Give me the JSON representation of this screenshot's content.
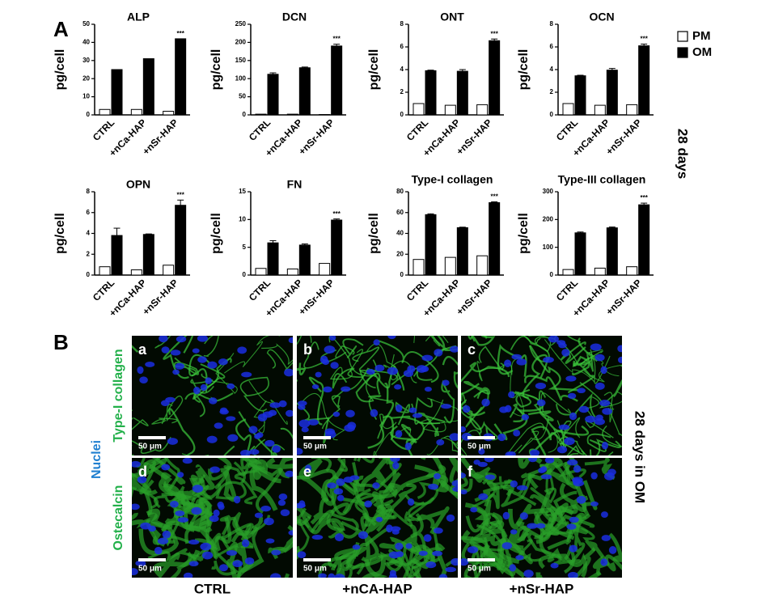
{
  "panel_a_label": "A",
  "side_label_a": "28 days",
  "chart_data": [
    {
      "type": "bar",
      "title": "ALP",
      "y_label": "pg/cell",
      "categories": [
        "CTRL",
        "+nCa-HAP",
        "+nSr-HAP"
      ],
      "series": [
        {
          "name": "PM",
          "color": "#ffffff",
          "values": [
            3,
            3,
            2
          ]
        },
        {
          "name": "OM",
          "color": "#000000",
          "values": [
            25,
            31,
            42
          ]
        }
      ],
      "annotation": "***",
      "ylim": [
        0,
        50
      ],
      "yticks": [
        0,
        10,
        20,
        30,
        40,
        50
      ]
    },
    {
      "type": "bar",
      "title": "DCN",
      "y_label": "pg/cell",
      "categories": [
        "CTRL",
        "+nCa-HAP",
        "+nSr-HAP"
      ],
      "series": [
        {
          "name": "PM",
          "color": "#ffffff",
          "values": [
            2,
            2,
            1
          ]
        },
        {
          "name": "OM",
          "color": "#000000",
          "values": [
            112,
            130,
            190
          ],
          "errors": [
            4,
            2,
            5
          ]
        }
      ],
      "annotation": "***",
      "ylim": [
        0,
        250
      ],
      "yticks": [
        0,
        50,
        100,
        150,
        200,
        250
      ]
    },
    {
      "type": "bar",
      "title": "ONT",
      "y_label": "pg/cell",
      "categories": [
        "CTRL",
        "+nCa-HAP",
        "+nSr-HAP"
      ],
      "series": [
        {
          "name": "PM",
          "color": "#ffffff",
          "values": [
            1,
            0.85,
            0.9
          ]
        },
        {
          "name": "OM",
          "color": "#000000",
          "values": [
            3.9,
            3.85,
            6.55
          ],
          "errors": [
            0.05,
            0.15,
            0.15
          ]
        }
      ],
      "annotation": "***",
      "ylim": [
        0,
        8
      ],
      "yticks": [
        0,
        2,
        4,
        6,
        8
      ]
    },
    {
      "type": "bar",
      "title": "OCN",
      "y_label": "pg/cell",
      "categories": [
        "CTRL",
        "+nCa-HAP",
        "+nSr-HAP"
      ],
      "series": [
        {
          "name": "PM",
          "color": "#ffffff",
          "values": [
            1,
            0.85,
            0.9
          ]
        },
        {
          "name": "OM",
          "color": "#000000",
          "values": [
            3.45,
            3.95,
            6.1
          ],
          "errors": [
            0.05,
            0.15,
            0.15
          ]
        }
      ],
      "annotation": "***",
      "ylim": [
        0,
        8
      ],
      "yticks": [
        0,
        2,
        4,
        6,
        8
      ]
    },
    {
      "type": "bar",
      "title": "OPN",
      "y_label": "pg/cell",
      "categories": [
        "CTRL",
        "+nCa-HAP",
        "+nSr-HAP"
      ],
      "series": [
        {
          "name": "PM",
          "color": "#ffffff",
          "values": [
            0.8,
            0.5,
            0.95
          ]
        },
        {
          "name": "OM",
          "color": "#000000",
          "values": [
            3.8,
            3.9,
            6.7
          ],
          "errors": [
            0.7,
            0.05,
            0.5
          ]
        }
      ],
      "annotation": "***",
      "ylim": [
        0,
        8
      ],
      "yticks": [
        0,
        2,
        4,
        6,
        8
      ]
    },
    {
      "type": "bar",
      "title": "FN",
      "y_label": "pg/cell",
      "categories": [
        "CTRL",
        "+nCa-HAP",
        "+nSr-HAP"
      ],
      "series": [
        {
          "name": "PM",
          "color": "#ffffff",
          "values": [
            1.2,
            1.1,
            2.1
          ]
        },
        {
          "name": "OM",
          "color": "#000000",
          "values": [
            5.8,
            5.4,
            9.9
          ],
          "errors": [
            0.4,
            0.2,
            0.2
          ]
        }
      ],
      "annotation": "***",
      "ylim": [
        0,
        15
      ],
      "yticks": [
        0,
        5,
        10,
        15
      ]
    },
    {
      "type": "bar",
      "title": "Type-I collagen",
      "y_label": "pg/cell",
      "categories": [
        "CTRL",
        "+nCa-HAP",
        "+nSr-HAP"
      ],
      "series": [
        {
          "name": "PM",
          "color": "#ffffff",
          "values": [
            15,
            17,
            18.5
          ]
        },
        {
          "name": "OM",
          "color": "#000000",
          "values": [
            58,
            45.5,
            69.5
          ],
          "errors": [
            0.8,
            0.5,
            0.8
          ]
        }
      ],
      "annotation": "***",
      "ylim": [
        0,
        80
      ],
      "yticks": [
        0,
        20,
        40,
        60,
        80
      ]
    },
    {
      "type": "bar",
      "title": "Type-III collagen",
      "y_label": "pg/cell",
      "categories": [
        "CTRL",
        "+nCa-HAP",
        "+nSr-HAP"
      ],
      "series": [
        {
          "name": "PM",
          "color": "#ffffff",
          "values": [
            20,
            25,
            30
          ]
        },
        {
          "name": "OM",
          "color": "#000000",
          "values": [
            152,
            170,
            253
          ],
          "errors": [
            3,
            3,
            6
          ]
        }
      ],
      "annotation": "***",
      "ylim": [
        0,
        300
      ],
      "yticks": [
        0,
        100,
        200,
        300
      ]
    }
  ],
  "panel_b": {
    "label": "B",
    "stain_nuclei": "Nuclei",
    "rows": [
      "Type-I collagen",
      "Ostecalcin"
    ],
    "columns": [
      "CTRL",
      "+nCA-HAP",
      "+nSr-HAP"
    ],
    "panels": [
      "a",
      "b",
      "c",
      "d",
      "e",
      "f"
    ],
    "scale_bar": "50 μm",
    "side_label": "28 days in OM"
  }
}
